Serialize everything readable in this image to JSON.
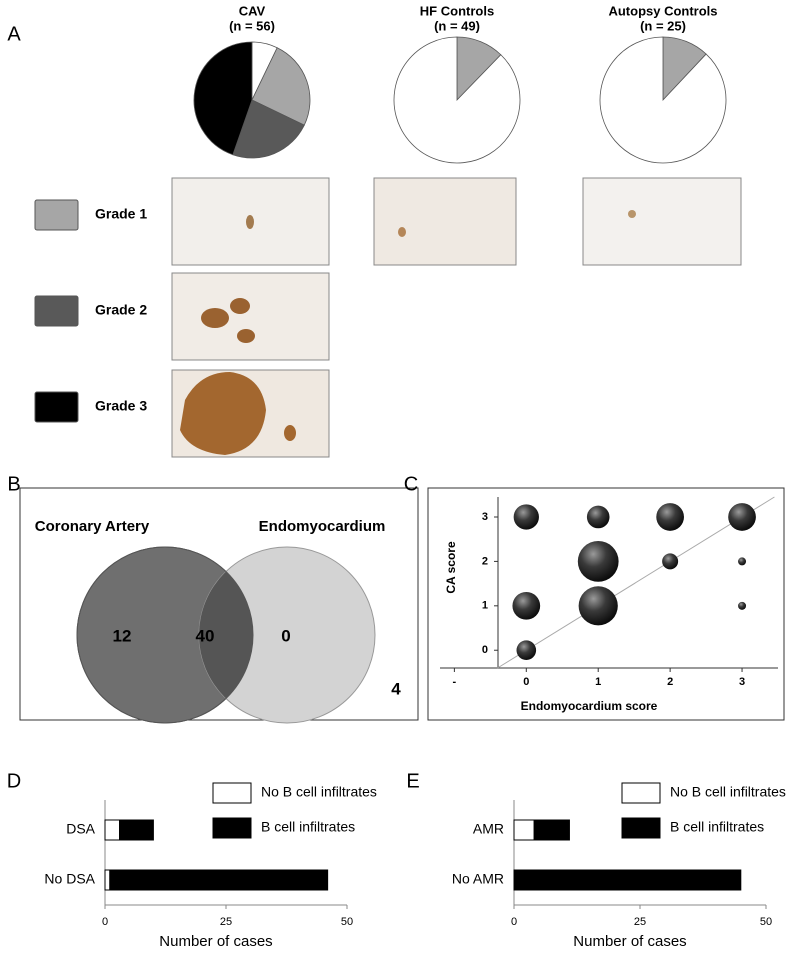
{
  "panel_labels": [
    "A",
    "B",
    "C",
    "D",
    "E"
  ],
  "chart_data": [
    {
      "type": "pie",
      "title": "CAV",
      "subtitle": "(n = 56)",
      "categories": [
        null,
        "Grade 1",
        "Grade 2",
        "Grade 3"
      ],
      "values": [
        4,
        14,
        13,
        25
      ],
      "colors": [
        "#ffffff",
        "#a6a6a6",
        "#595959",
        "#000000"
      ]
    },
    {
      "type": "pie",
      "title": "HF Controls",
      "subtitle": "(n = 49)",
      "values": [
        6,
        43
      ],
      "colors": [
        "#a6a6a6",
        "#ffffff"
      ]
    },
    {
      "type": "pie",
      "title": "Autopsy Controls",
      "subtitle": "(n = 25)",
      "values": [
        3,
        22
      ],
      "colors": [
        "#a6a6a6",
        "#ffffff"
      ]
    },
    {
      "type": "venn",
      "sets": [
        "Coronary Artery",
        "Endomyocardium"
      ],
      "values": [
        12,
        40,
        0,
        4
      ]
    },
    {
      "type": "bubble",
      "xlabel": "Endomyocardium score",
      "ylabel": "CA score",
      "x": [
        0,
        1,
        2,
        3,
        1,
        2,
        3,
        0,
        1,
        3,
        0
      ],
      "y": [
        3,
        3,
        3,
        3,
        2,
        2,
        2,
        1,
        1,
        1,
        0
      ],
      "sizes": [
        10,
        8,
        12,
        12,
        26,
        4,
        1,
        12,
        24,
        1,
        6
      ],
      "xlim": [
        -1.2,
        3.5
      ],
      "ylim": [
        -0.4,
        3.45
      ],
      "xticks": [
        {
          "value": -1,
          "label": "-"
        },
        0,
        1,
        2,
        3
      ],
      "yticks": [
        0,
        1,
        2,
        3
      ]
    },
    {
      "type": "hbar_stacked",
      "categories": [
        "DSA",
        "No DSA"
      ],
      "xlabel": "Number of cases",
      "series": [
        {
          "name": "No B cell infiltrates",
          "color": "#ffffff",
          "values": [
            3,
            1
          ]
        },
        {
          "name": "B cell infiltrates",
          "color": "#000000",
          "values": [
            7,
            45
          ]
        }
      ],
      "xlim": [
        0,
        50
      ],
      "xticks": [
        0,
        25,
        50
      ]
    },
    {
      "type": "hbar_stacked",
      "categories": [
        "AMR",
        "No AMR"
      ],
      "xlabel": "Number of cases",
      "series": [
        {
          "name": "No B cell infiltrates",
          "color": "#ffffff",
          "values": [
            4,
            0
          ]
        },
        {
          "name": "B cell infiltrates",
          "color": "#000000",
          "values": [
            7,
            45
          ]
        }
      ],
      "xlim": [
        0,
        50
      ],
      "xticks": [
        0,
        25,
        50
      ]
    }
  ]
}
